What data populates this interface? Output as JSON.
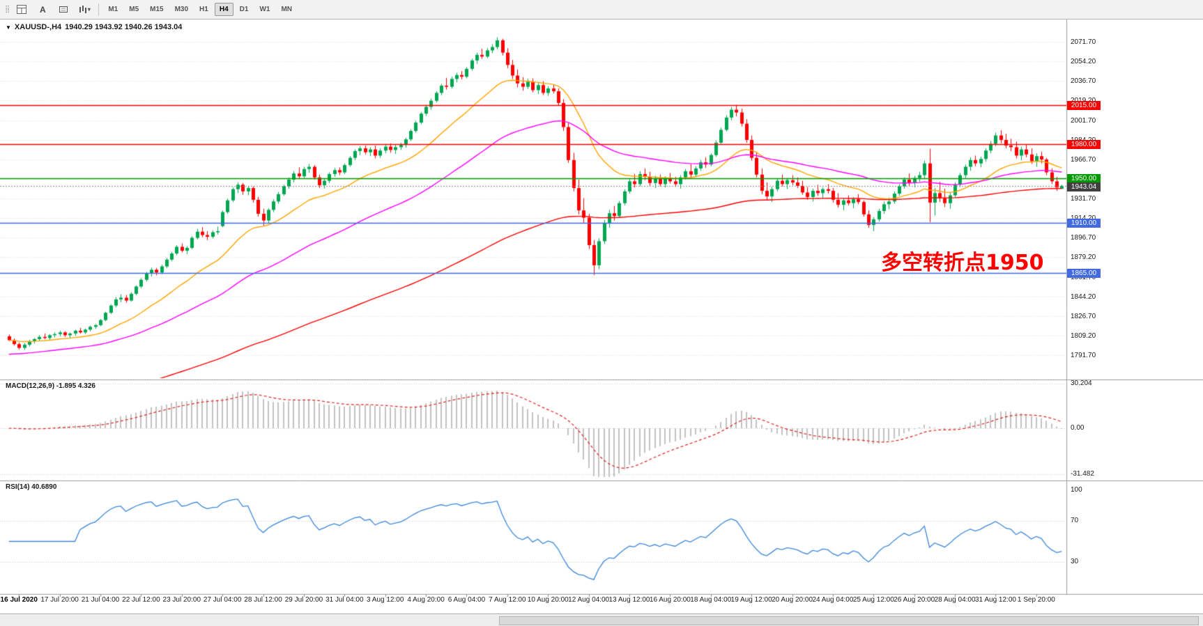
{
  "toolbar": {
    "a_label": "A",
    "timeframes": [
      "M1",
      "M5",
      "M15",
      "M30",
      "H1",
      "H4",
      "D1",
      "W1",
      "MN"
    ],
    "active_timeframe": "H4"
  },
  "chart": {
    "symbol_label": "XAUUSD-,H4",
    "ohlc_label": "1940.29 1943.92 1940.26 1943.04",
    "annotation": {
      "text": "多空转折点1950",
      "color": "#FF0000"
    },
    "price_axis": {
      "top": 2071.7,
      "step": 17.5,
      "labels": [
        "2071.70",
        "2054.20",
        "2036.70",
        "2019.20",
        "2001.70",
        "1984.20",
        "1966.70",
        "1949.20",
        "1931.70",
        "1914.20",
        "1896.70",
        "1879.20",
        "1861.70",
        "1844.20",
        "1826.70",
        "1809.20",
        "1791.70"
      ]
    },
    "hlines": [
      {
        "price": 2015.0,
        "label": "2015.00",
        "color": "#FF0000"
      },
      {
        "price": 1980.0,
        "label": "1980.00",
        "color": "#FF0000"
      },
      {
        "price": 1950.0,
        "label": "1950.00",
        "color": "#009A00"
      },
      {
        "price": 1910.0,
        "label": "1910.00",
        "color": "#4169E1"
      },
      {
        "price": 1865.0,
        "label": "1865.00",
        "color": "#4169E1"
      }
    ],
    "current_price": {
      "value": 1943.04,
      "label": "1943.04",
      "color": "#3F3F3F"
    }
  },
  "macd": {
    "label": "MACD(12,26,9) -1.895 4.326",
    "params": [
      12,
      26,
      9
    ],
    "value": -1.895,
    "signal": 4.326,
    "axis": [
      "30.204",
      "0.00",
      "-31.482"
    ]
  },
  "rsi": {
    "label": "RSI(14) 40.6890",
    "period": 14,
    "value": 40.689,
    "levels": [
      70,
      30
    ],
    "axis": [
      "100",
      "70",
      "30"
    ]
  },
  "chart_data": {
    "type": "candlestick",
    "symbol": "XAUUSD",
    "timeframe": "H4",
    "up_color": "#00A651",
    "down_color": "#FF0000",
    "x_labels": [
      "16 Jul 2020",
      "17 Jul 20:00",
      "21 Jul 04:00",
      "22 Jul 12:00",
      "23 Jul 20:00",
      "27 Jul 04:00",
      "28 Jul 12:00",
      "29 Jul 20:00",
      "31 Jul 04:00",
      "3 Aug 12:00",
      "4 Aug 20:00",
      "6 Aug 04:00",
      "7 Aug 12:00",
      "10 Aug 20:00",
      "12 Aug 04:00",
      "13 Aug 12:00",
      "16 Aug 20:00",
      "18 Aug 04:00",
      "19 Aug 12:00",
      "20 Aug 20:00",
      "24 Aug 04:00",
      "25 Aug 12:00",
      "26 Aug 20:00",
      "28 Aug 04:00",
      "31 Aug 12:00",
      "1 Sep 20:00"
    ],
    "x_label_first_index": 2,
    "x_label_every": 8,
    "moving_averages": [
      {
        "name": "ma-fast",
        "period": 21,
        "color": "#FFA500",
        "seed": null
      },
      {
        "name": "ma-medium",
        "period": 55,
        "color": "#FF00FF",
        "seed": 1792
      },
      {
        "name": "ma-slow",
        "period": 150,
        "color": "#FF0000",
        "seed": 1742
      }
    ],
    "candles": [
      [
        1808.5,
        1810.2,
        1804.0,
        1805.0
      ],
      [
        1805.0,
        1806.5,
        1800.2,
        1801.5
      ],
      [
        1801.5,
        1803.0,
        1796.8,
        1798.2
      ],
      [
        1798.2,
        1802.5,
        1796.5,
        1801.0
      ],
      [
        1801.0,
        1805.5,
        1799.5,
        1804.2
      ],
      [
        1804.2,
        1807.0,
        1802.0,
        1806.0
      ],
      [
        1806.0,
        1809.5,
        1804.5,
        1808.0
      ],
      [
        1808.0,
        1811.0,
        1806.0,
        1807.0
      ],
      [
        1807.0,
        1810.5,
        1805.0,
        1809.5
      ],
      [
        1809.5,
        1812.0,
        1807.5,
        1810.5
      ],
      [
        1810.5,
        1813.5,
        1808.5,
        1812.0
      ],
      [
        1812.0,
        1813.0,
        1808.0,
        1809.5
      ],
      [
        1809.5,
        1812.0,
        1806.5,
        1811.0
      ],
      [
        1811.0,
        1814.5,
        1809.0,
        1813.5
      ],
      [
        1813.5,
        1816.0,
        1811.0,
        1812.0
      ],
      [
        1812.0,
        1815.5,
        1810.5,
        1814.5
      ],
      [
        1814.5,
        1818.0,
        1813.0,
        1817.0
      ],
      [
        1817.0,
        1819.5,
        1815.0,
        1818.5
      ],
      [
        1818.5,
        1824.0,
        1817.5,
        1823.0
      ],
      [
        1823.0,
        1830.5,
        1822.0,
        1829.5
      ],
      [
        1829.5,
        1837.0,
        1828.5,
        1836.0
      ],
      [
        1836.0,
        1843.5,
        1834.5,
        1841.5
      ],
      [
        1841.5,
        1846.0,
        1839.0,
        1843.0
      ],
      [
        1843.0,
        1845.5,
        1838.5,
        1840.5
      ],
      [
        1840.5,
        1848.0,
        1839.5,
        1846.5
      ],
      [
        1846.5,
        1854.0,
        1845.0,
        1853.0
      ],
      [
        1853.0,
        1860.5,
        1851.5,
        1859.0
      ],
      [
        1859.0,
        1866.0,
        1857.5,
        1865.0
      ],
      [
        1865.0,
        1870.0,
        1862.0,
        1868.0
      ],
      [
        1868.0,
        1869.5,
        1863.0,
        1865.5
      ],
      [
        1865.5,
        1872.5,
        1864.0,
        1871.0
      ],
      [
        1871.0,
        1878.5,
        1869.5,
        1877.0
      ],
      [
        1877.0,
        1884.0,
        1875.5,
        1882.5
      ],
      [
        1882.5,
        1890.0,
        1881.0,
        1888.5
      ],
      [
        1888.5,
        1891.5,
        1883.5,
        1885.0
      ],
      [
        1885.0,
        1889.0,
        1882.0,
        1887.5
      ],
      [
        1887.5,
        1898.0,
        1886.5,
        1896.5
      ],
      [
        1896.5,
        1904.5,
        1895.0,
        1902.0
      ],
      [
        1902.0,
        1906.0,
        1897.0,
        1899.0
      ],
      [
        1899.0,
        1902.5,
        1894.5,
        1897.5
      ],
      [
        1897.5,
        1903.0,
        1896.0,
        1901.5
      ],
      [
        1901.5,
        1906.5,
        1899.5,
        1902.5
      ],
      [
        1907.0,
        1921.0,
        1906.0,
        1919.5
      ],
      [
        1919.5,
        1931.5,
        1918.0,
        1930.0
      ],
      [
        1930.0,
        1941.5,
        1928.5,
        1940.0
      ],
      [
        1940.0,
        1946.0,
        1936.5,
        1944.0
      ],
      [
        1944.0,
        1945.5,
        1935.0,
        1938.0
      ],
      [
        1938.0,
        1943.0,
        1934.5,
        1941.0
      ],
      [
        1941.0,
        1942.5,
        1928.0,
        1930.5
      ],
      [
        1930.5,
        1933.0,
        1915.5,
        1918.0
      ],
      [
        1918.0,
        1922.5,
        1907.5,
        1912.0
      ],
      [
        1912.0,
        1923.0,
        1910.0,
        1921.5
      ],
      [
        1921.5,
        1931.0,
        1919.5,
        1929.0
      ],
      [
        1929.0,
        1937.5,
        1927.0,
        1935.5
      ],
      [
        1935.5,
        1944.0,
        1934.0,
        1942.5
      ],
      [
        1942.5,
        1950.5,
        1940.5,
        1948.5
      ],
      [
        1948.5,
        1956.0,
        1946.0,
        1954.0
      ],
      [
        1954.0,
        1959.5,
        1949.0,
        1951.5
      ],
      [
        1951.5,
        1960.0,
        1950.0,
        1958.0
      ],
      [
        1958.0,
        1962.5,
        1954.5,
        1960.0
      ],
      [
        1960.0,
        1961.5,
        1948.5,
        1950.5
      ],
      [
        1950.5,
        1953.0,
        1941.0,
        1943.5
      ],
      [
        1943.5,
        1949.5,
        1940.5,
        1947.5
      ],
      [
        1947.5,
        1955.0,
        1945.5,
        1953.5
      ],
      [
        1953.5,
        1959.0,
        1951.0,
        1957.0
      ],
      [
        1957.0,
        1959.5,
        1952.5,
        1955.0
      ],
      [
        1955.0,
        1963.0,
        1953.5,
        1961.5
      ],
      [
        1961.5,
        1969.5,
        1960.0,
        1968.0
      ],
      [
        1968.0,
        1975.5,
        1966.0,
        1974.0
      ],
      [
        1974.0,
        1978.5,
        1970.5,
        1976.5
      ],
      [
        1976.5,
        1979.0,
        1971.0,
        1973.0
      ],
      [
        1973.0,
        1977.5,
        1969.5,
        1975.5
      ],
      [
        1975.5,
        1979.0,
        1967.5,
        1970.0
      ],
      [
        1970.0,
        1976.5,
        1968.0,
        1974.5
      ],
      [
        1974.5,
        1980.5,
        1972.0,
        1978.0
      ],
      [
        1978.0,
        1981.0,
        1972.5,
        1975.0
      ],
      [
        1975.0,
        1979.5,
        1971.5,
        1977.5
      ],
      [
        1977.5,
        1981.5,
        1975.0,
        1979.5
      ],
      [
        1979.5,
        1986.0,
        1977.0,
        1984.5
      ],
      [
        1984.5,
        1993.5,
        1983.0,
        1992.0
      ],
      [
        1992.0,
        2001.0,
        1990.5,
        1999.5
      ],
      [
        1999.5,
        2009.0,
        1998.0,
        2007.5
      ],
      [
        2007.5,
        2015.5,
        2005.5,
        2013.5
      ],
      [
        2013.5,
        2021.0,
        2011.0,
        2019.0
      ],
      [
        2019.0,
        2027.5,
        2017.5,
        2026.0
      ],
      [
        2026.0,
        2034.0,
        2024.0,
        2032.5
      ],
      [
        2032.5,
        2039.5,
        2029.0,
        2031.5
      ],
      [
        2031.5,
        2040.5,
        2030.0,
        2038.5
      ],
      [
        2038.5,
        2044.0,
        2035.5,
        2042.0
      ],
      [
        2042.0,
        2045.5,
        2038.0,
        2040.5
      ],
      [
        2040.5,
        2049.0,
        2039.0,
        2047.5
      ],
      [
        2047.5,
        2056.5,
        2046.0,
        2055.0
      ],
      [
        2055.0,
        2062.0,
        2052.0,
        2060.0
      ],
      [
        2060.0,
        2065.5,
        2056.5,
        2058.5
      ],
      [
        2058.5,
        2066.0,
        2057.0,
        2064.0
      ],
      [
        2064.0,
        2069.5,
        2061.5,
        2067.0
      ],
      [
        2067.0,
        2075.7,
        2065.0,
        2073.0
      ],
      [
        2073.0,
        2074.5,
        2059.5,
        2062.0
      ],
      [
        2062.0,
        2066.0,
        2048.0,
        2051.0
      ],
      [
        2051.0,
        2055.5,
        2038.5,
        2041.5
      ],
      [
        2041.5,
        2047.0,
        2031.0,
        2034.5
      ],
      [
        2034.5,
        2040.0,
        2028.0,
        2031.5
      ],
      [
        2031.5,
        2038.5,
        2029.5,
        2036.0
      ],
      [
        2036.0,
        2039.0,
        2026.5,
        2028.5
      ],
      [
        2028.5,
        2035.0,
        2025.0,
        2033.0
      ],
      [
        2033.0,
        2036.5,
        2024.0,
        2026.0
      ],
      [
        2026.0,
        2032.0,
        2023.5,
        2030.0
      ],
      [
        2030.0,
        2033.5,
        2025.5,
        2027.5
      ],
      [
        2027.5,
        2030.0,
        2014.5,
        2017.0
      ],
      [
        2017.0,
        2020.5,
        1992.0,
        1995.5
      ],
      [
        1995.5,
        1999.0,
        1963.5,
        1966.0
      ],
      [
        1966.0,
        1972.5,
        1938.0,
        1941.0
      ],
      [
        1941.0,
        1948.5,
        1917.5,
        1921.0
      ],
      [
        1921.0,
        1932.0,
        1910.0,
        1914.5
      ],
      [
        1914.5,
        1918.0,
        1886.5,
        1890.0
      ],
      [
        1890.0,
        1894.5,
        1863.2,
        1872.0
      ],
      [
        1872.0,
        1896.0,
        1868.5,
        1893.5
      ],
      [
        1893.5,
        1912.5,
        1891.0,
        1910.0
      ],
      [
        1910.0,
        1921.5,
        1905.5,
        1918.5
      ],
      [
        1918.5,
        1925.0,
        1912.0,
        1916.0
      ],
      [
        1916.0,
        1929.5,
        1914.5,
        1927.5
      ],
      [
        1927.5,
        1940.0,
        1925.5,
        1938.0
      ],
      [
        1938.0,
        1949.5,
        1936.0,
        1947.0
      ],
      [
        1947.0,
        1953.5,
        1941.5,
        1944.5
      ],
      [
        1944.5,
        1956.0,
        1942.5,
        1953.5
      ],
      [
        1953.5,
        1958.5,
        1948.0,
        1951.0
      ],
      [
        1951.0,
        1955.5,
        1943.0,
        1945.5
      ],
      [
        1945.5,
        1952.0,
        1941.0,
        1949.5
      ],
      [
        1949.5,
        1953.0,
        1942.5,
        1944.5
      ],
      [
        1944.5,
        1951.5,
        1941.5,
        1950.0
      ],
      [
        1950.0,
        1954.5,
        1945.0,
        1947.0
      ],
      [
        1947.0,
        1951.0,
        1942.0,
        1944.5
      ],
      [
        1944.5,
        1952.5,
        1940.5,
        1950.5
      ],
      [
        1950.5,
        1958.0,
        1948.5,
        1956.0
      ],
      [
        1956.0,
        1962.5,
        1950.0,
        1953.0
      ],
      [
        1953.0,
        1960.5,
        1951.0,
        1958.5
      ],
      [
        1958.5,
        1966.0,
        1956.5,
        1964.0
      ],
      [
        1964.0,
        1968.5,
        1959.0,
        1962.0
      ],
      [
        1962.0,
        1972.0,
        1960.5,
        1970.5
      ],
      [
        1970.5,
        1983.5,
        1969.0,
        1981.5
      ],
      [
        1981.5,
        1995.0,
        1980.0,
        1993.0
      ],
      [
        1993.0,
        2006.0,
        1991.5,
        2004.0
      ],
      [
        2004.0,
        2013.5,
        2001.5,
        2011.0
      ],
      [
        2011.0,
        2015.3,
        2005.0,
        2008.5
      ],
      [
        2008.5,
        2012.0,
        1996.0,
        1998.5
      ],
      [
        1998.5,
        2002.5,
        1981.5,
        1984.0
      ],
      [
        1984.0,
        1988.0,
        1965.5,
        1968.0
      ],
      [
        1968.0,
        1973.5,
        1950.5,
        1953.0
      ],
      [
        1953.0,
        1958.5,
        1935.5,
        1938.5
      ],
      [
        1938.5,
        1946.0,
        1930.0,
        1933.5
      ],
      [
        1933.5,
        1942.0,
        1928.5,
        1940.0
      ],
      [
        1940.0,
        1949.5,
        1938.0,
        1947.5
      ],
      [
        1947.5,
        1953.0,
        1942.5,
        1944.5
      ],
      [
        1944.5,
        1950.0,
        1940.0,
        1948.0
      ],
      [
        1948.0,
        1952.5,
        1943.5,
        1946.0
      ],
      [
        1946.0,
        1950.5,
        1941.0,
        1943.0
      ],
      [
        1943.0,
        1947.5,
        1935.0,
        1937.0
      ],
      [
        1937.0,
        1942.0,
        1930.5,
        1933.0
      ],
      [
        1933.0,
        1940.5,
        1929.0,
        1938.5
      ],
      [
        1938.5,
        1944.0,
        1934.0,
        1936.5
      ],
      [
        1936.5,
        1941.5,
        1931.5,
        1940.0
      ],
      [
        1940.0,
        1944.5,
        1936.0,
        1938.5
      ],
      [
        1938.5,
        1941.0,
        1928.0,
        1930.5
      ],
      [
        1930.5,
        1936.5,
        1923.5,
        1926.0
      ],
      [
        1926.0,
        1932.0,
        1921.0,
        1930.0
      ],
      [
        1930.0,
        1934.5,
        1925.5,
        1927.5
      ],
      [
        1927.5,
        1933.0,
        1923.0,
        1931.0
      ],
      [
        1931.0,
        1935.5,
        1926.5,
        1928.5
      ],
      [
        1928.5,
        1930.0,
        1915.5,
        1917.5
      ],
      [
        1917.5,
        1921.0,
        1905.5,
        1908.0
      ],
      [
        1908.0,
        1915.0,
        1902.5,
        1913.0
      ],
      [
        1913.0,
        1922.5,
        1911.0,
        1920.5
      ],
      [
        1920.5,
        1929.0,
        1918.0,
        1926.5
      ],
      [
        1926.5,
        1932.5,
        1922.0,
        1929.0
      ],
      [
        1929.0,
        1938.0,
        1927.0,
        1936.0
      ],
      [
        1936.0,
        1944.5,
        1934.0,
        1942.5
      ],
      [
        1942.5,
        1950.5,
        1940.5,
        1948.5
      ],
      [
        1948.5,
        1954.0,
        1943.0,
        1945.5
      ],
      [
        1945.5,
        1952.0,
        1941.5,
        1950.0
      ],
      [
        1950.0,
        1955.5,
        1946.5,
        1952.5
      ],
      [
        1952.5,
        1965.5,
        1949.5,
        1963.0
      ],
      [
        1963.0,
        1976.2,
        1910.5,
        1928.0
      ],
      [
        1928.0,
        1941.0,
        1916.5,
        1936.5
      ],
      [
        1936.5,
        1946.5,
        1928.5,
        1932.0
      ],
      [
        1932.0,
        1940.5,
        1924.0,
        1927.5
      ],
      [
        1927.5,
        1937.0,
        1922.5,
        1934.5
      ],
      [
        1934.5,
        1946.0,
        1932.5,
        1944.0
      ],
      [
        1944.0,
        1954.5,
        1942.0,
        1952.5
      ],
      [
        1952.5,
        1962.0,
        1950.0,
        1960.0
      ],
      [
        1960.0,
        1968.5,
        1956.5,
        1966.0
      ],
      [
        1966.0,
        1970.0,
        1960.5,
        1963.0
      ],
      [
        1963.0,
        1969.0,
        1959.5,
        1967.0
      ],
      [
        1967.0,
        1976.5,
        1964.5,
        1974.5
      ],
      [
        1974.5,
        1983.0,
        1972.0,
        1980.5
      ],
      [
        1980.5,
        1990.5,
        1978.5,
        1988.0
      ],
      [
        1988.0,
        1992.7,
        1981.0,
        1984.0
      ],
      [
        1984.0,
        1989.5,
        1976.5,
        1979.0
      ],
      [
        1979.0,
        1985.0,
        1974.0,
        1977.5
      ],
      [
        1977.5,
        1982.5,
        1967.5,
        1970.0
      ],
      [
        1970.0,
        1978.0,
        1966.0,
        1975.5
      ],
      [
        1975.5,
        1980.0,
        1968.5,
        1971.0
      ],
      [
        1971.0,
        1976.5,
        1962.5,
        1965.0
      ],
      [
        1965.0,
        1972.0,
        1960.0,
        1969.5
      ],
      [
        1969.5,
        1973.5,
        1963.0,
        1966.5
      ],
      [
        1966.5,
        1968.0,
        1952.5,
        1955.0
      ],
      [
        1955.0,
        1958.5,
        1944.5,
        1947.0
      ],
      [
        1947.0,
        1951.0,
        1938.5,
        1941.5
      ],
      [
        1940.29,
        1943.92,
        1940.26,
        1943.04
      ]
    ]
  }
}
